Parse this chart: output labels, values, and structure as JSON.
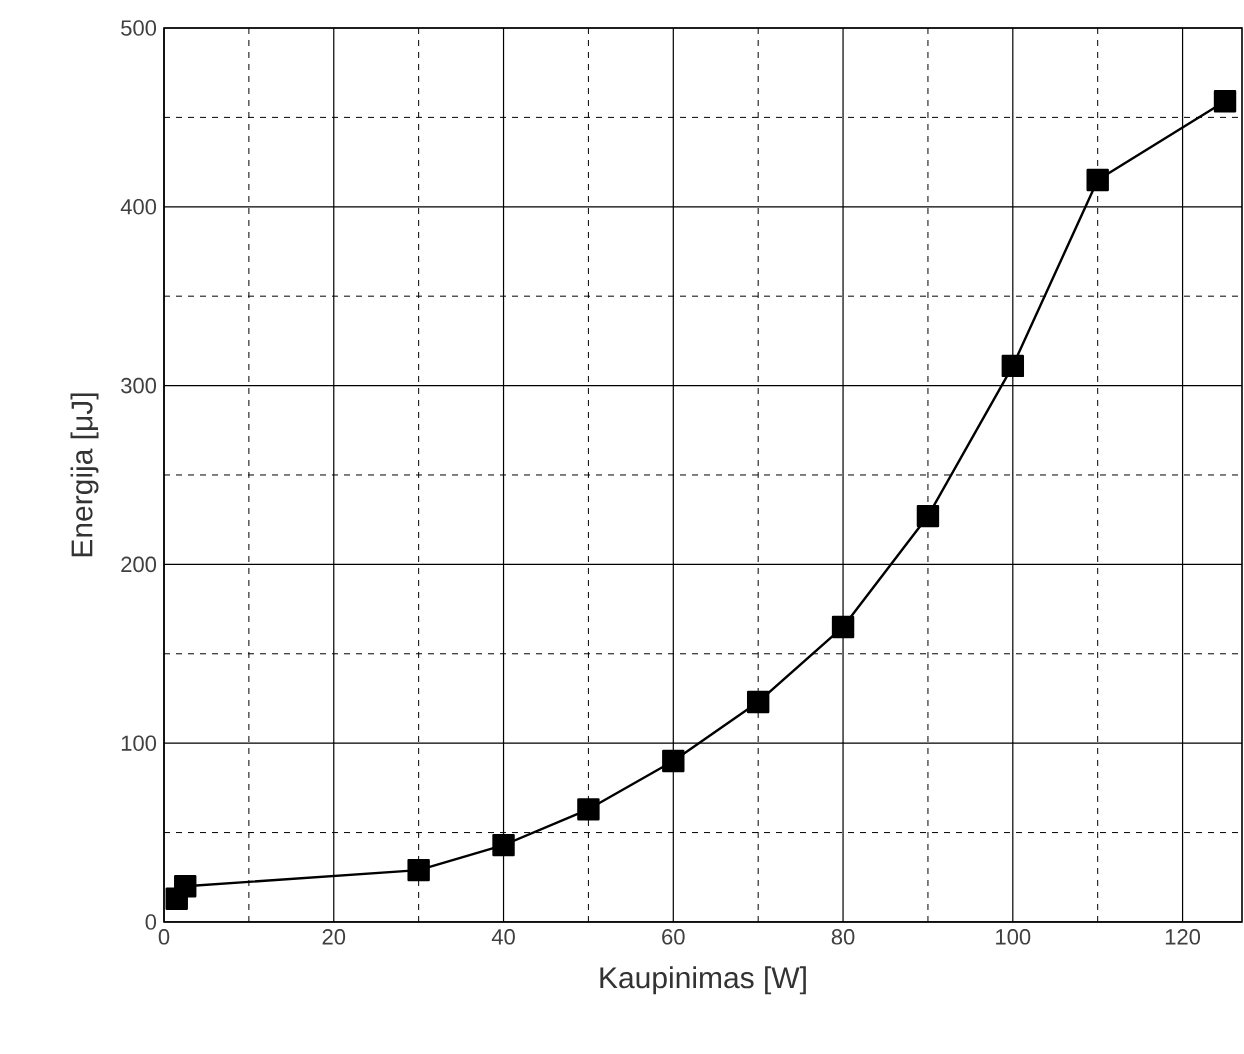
{
  "chart_data": {
    "type": "line",
    "xlabel": "Kaupinimas [W]",
    "ylabel": "Energija [μJ]",
    "x": [
      1.5,
      2.5,
      30,
      40,
      50,
      60,
      70,
      80,
      90,
      100,
      110,
      125
    ],
    "series": [
      {
        "color": "#000000",
        "values": [
          13,
          20,
          29,
          43,
          63,
          90,
          123,
          165,
          227,
          311,
          415,
          459
        ]
      }
    ],
    "xlim": [
      0,
      127
    ],
    "ylim": [
      0,
      500
    ],
    "xticks": [
      0,
      20,
      40,
      60,
      80,
      100,
      120
    ],
    "yticks": [
      0,
      100,
      200,
      300,
      400,
      500
    ],
    "grid": true,
    "marker": "square",
    "line_style": "solid"
  }
}
